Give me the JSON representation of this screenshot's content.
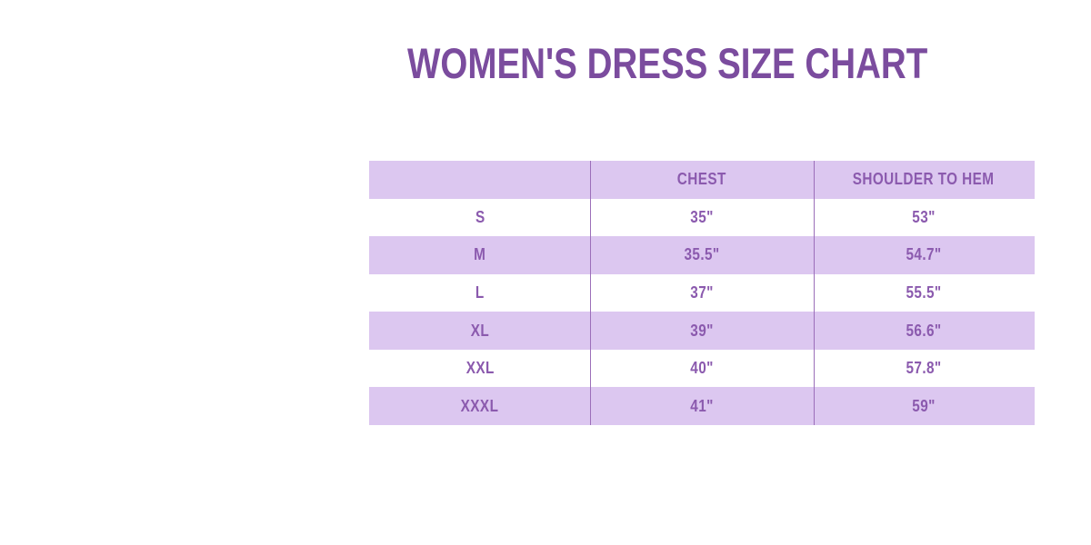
{
  "title": "WOMEN'S DRESS SIZE CHART",
  "table": {
    "columns": [
      "",
      "CHEST",
      "SHOULDER TO HEM"
    ],
    "rows": [
      {
        "size": "S",
        "chest": "35\"",
        "shoulder_to_hem": "53\""
      },
      {
        "size": "M",
        "chest": "35.5\"",
        "shoulder_to_hem": "54.7\""
      },
      {
        "size": "L",
        "chest": "37\"",
        "shoulder_to_hem": "55.5\""
      },
      {
        "size": "XL",
        "chest": "39\"",
        "shoulder_to_hem": "56.6\""
      },
      {
        "size": "XXL",
        "chest": "40\"",
        "shoulder_to_hem": "57.8\""
      },
      {
        "size": "XXXL",
        "chest": "41\"",
        "shoulder_to_hem": "59\""
      }
    ]
  },
  "chart_data": {
    "type": "table",
    "title": "WOMEN'S DRESS SIZE CHART",
    "columns": [
      "",
      "CHEST",
      "SHOULDER TO HEM"
    ],
    "rows": [
      [
        "S",
        "35\"",
        "53\""
      ],
      [
        "M",
        "35.5\"",
        "54.7\""
      ],
      [
        "L",
        "37\"",
        "55.5\""
      ],
      [
        "XL",
        "39\"",
        "56.6\""
      ],
      [
        "XXL",
        "40\"",
        "57.8\""
      ],
      [
        "XXXL",
        "41\"",
        "59\""
      ]
    ],
    "sizes": [
      "S",
      "M",
      "L",
      "XL",
      "XXL",
      "XXXL"
    ],
    "chest_inches": [
      35,
      35.5,
      37,
      39,
      40,
      41
    ],
    "shoulder_to_hem_inches": [
      53,
      54.7,
      55.5,
      56.6,
      57.8,
      59
    ],
    "units": "inches"
  },
  "colors": {
    "title_text": "#7b4c9e",
    "cell_text": "#8b5aae",
    "row_lavender": "#dcc7f0",
    "row_white": "#ffffff",
    "column_divider": "#9b6eb9",
    "background": "#ffffff"
  }
}
